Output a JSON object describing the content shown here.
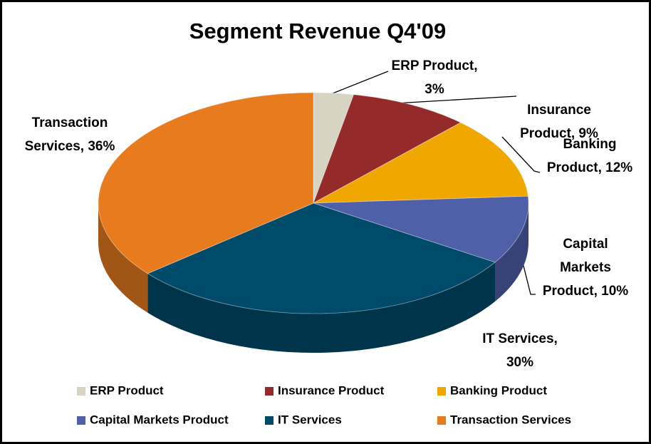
{
  "chart_data": {
    "type": "pie",
    "title": "Segment Revenue Q4'09",
    "categories": [
      "ERP Product",
      "Insurance Product",
      "Banking Product",
      "Capital Markets Product",
      "IT Services",
      "Transaction Services"
    ],
    "values": [
      3,
      9,
      12,
      10,
      30,
      36
    ],
    "value_labels": [
      "ERP Product,\n3%",
      "Insurance\nProduct, 9%",
      "Banking\nProduct, 12%",
      "Capital\nMarkets\nProduct, 10%",
      "IT Services,\n30%",
      "Transaction\nServices, 36%"
    ],
    "colors": [
      "#d8d4c4",
      "#952a2a",
      "#f0a800",
      "#4f5fa8",
      "#004a6a",
      "#e87b1e"
    ],
    "legend": "bottom"
  }
}
